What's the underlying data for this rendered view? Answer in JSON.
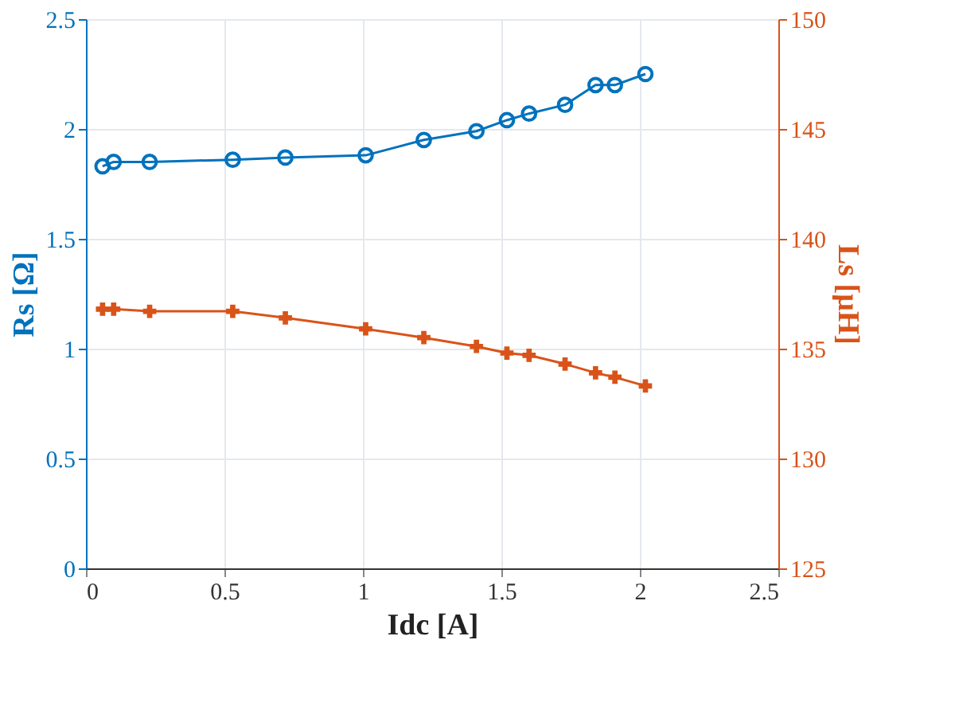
{
  "chart_data": {
    "type": "line",
    "xlabel": "Idc [A]",
    "ylabel": "Rs [Ω]",
    "y2label": "Ls [μH]",
    "x": [
      0.06,
      0.1,
      0.23,
      0.53,
      0.72,
      1.01,
      1.22,
      1.41,
      1.52,
      1.6,
      1.73,
      1.84,
      1.91,
      2.02
    ],
    "series": [
      {
        "color": "#0072bd",
        "marker": "circle",
        "values": [
          1.83,
          1.85,
          1.85,
          1.86,
          1.87,
          1.88,
          1.95,
          1.99,
          2.04,
          2.07,
          2.11,
          2.2,
          2.2,
          2.25
        ]
      },
      {
        "color": "#d95319",
        "marker": "cross",
        "axis": "y2",
        "values": [
          136.8,
          136.8,
          136.7,
          136.7,
          136.4,
          135.9,
          135.5,
          135.1,
          134.8,
          134.7,
          134.3,
          133.9,
          133.7,
          133.3
        ]
      }
    ],
    "xlim": [
      0,
      2.5
    ],
    "xticks": [
      0,
      0.5,
      1,
      1.5,
      2,
      2.5
    ],
    "ylim": [
      0,
      2.5
    ],
    "yticks": [
      0,
      0.5,
      1,
      1.5,
      2,
      2.5
    ],
    "y2lim": [
      125,
      150
    ],
    "y2ticks": [
      125,
      130,
      135,
      140,
      145,
      150
    ],
    "grid": true,
    "line_style": "solid"
  }
}
